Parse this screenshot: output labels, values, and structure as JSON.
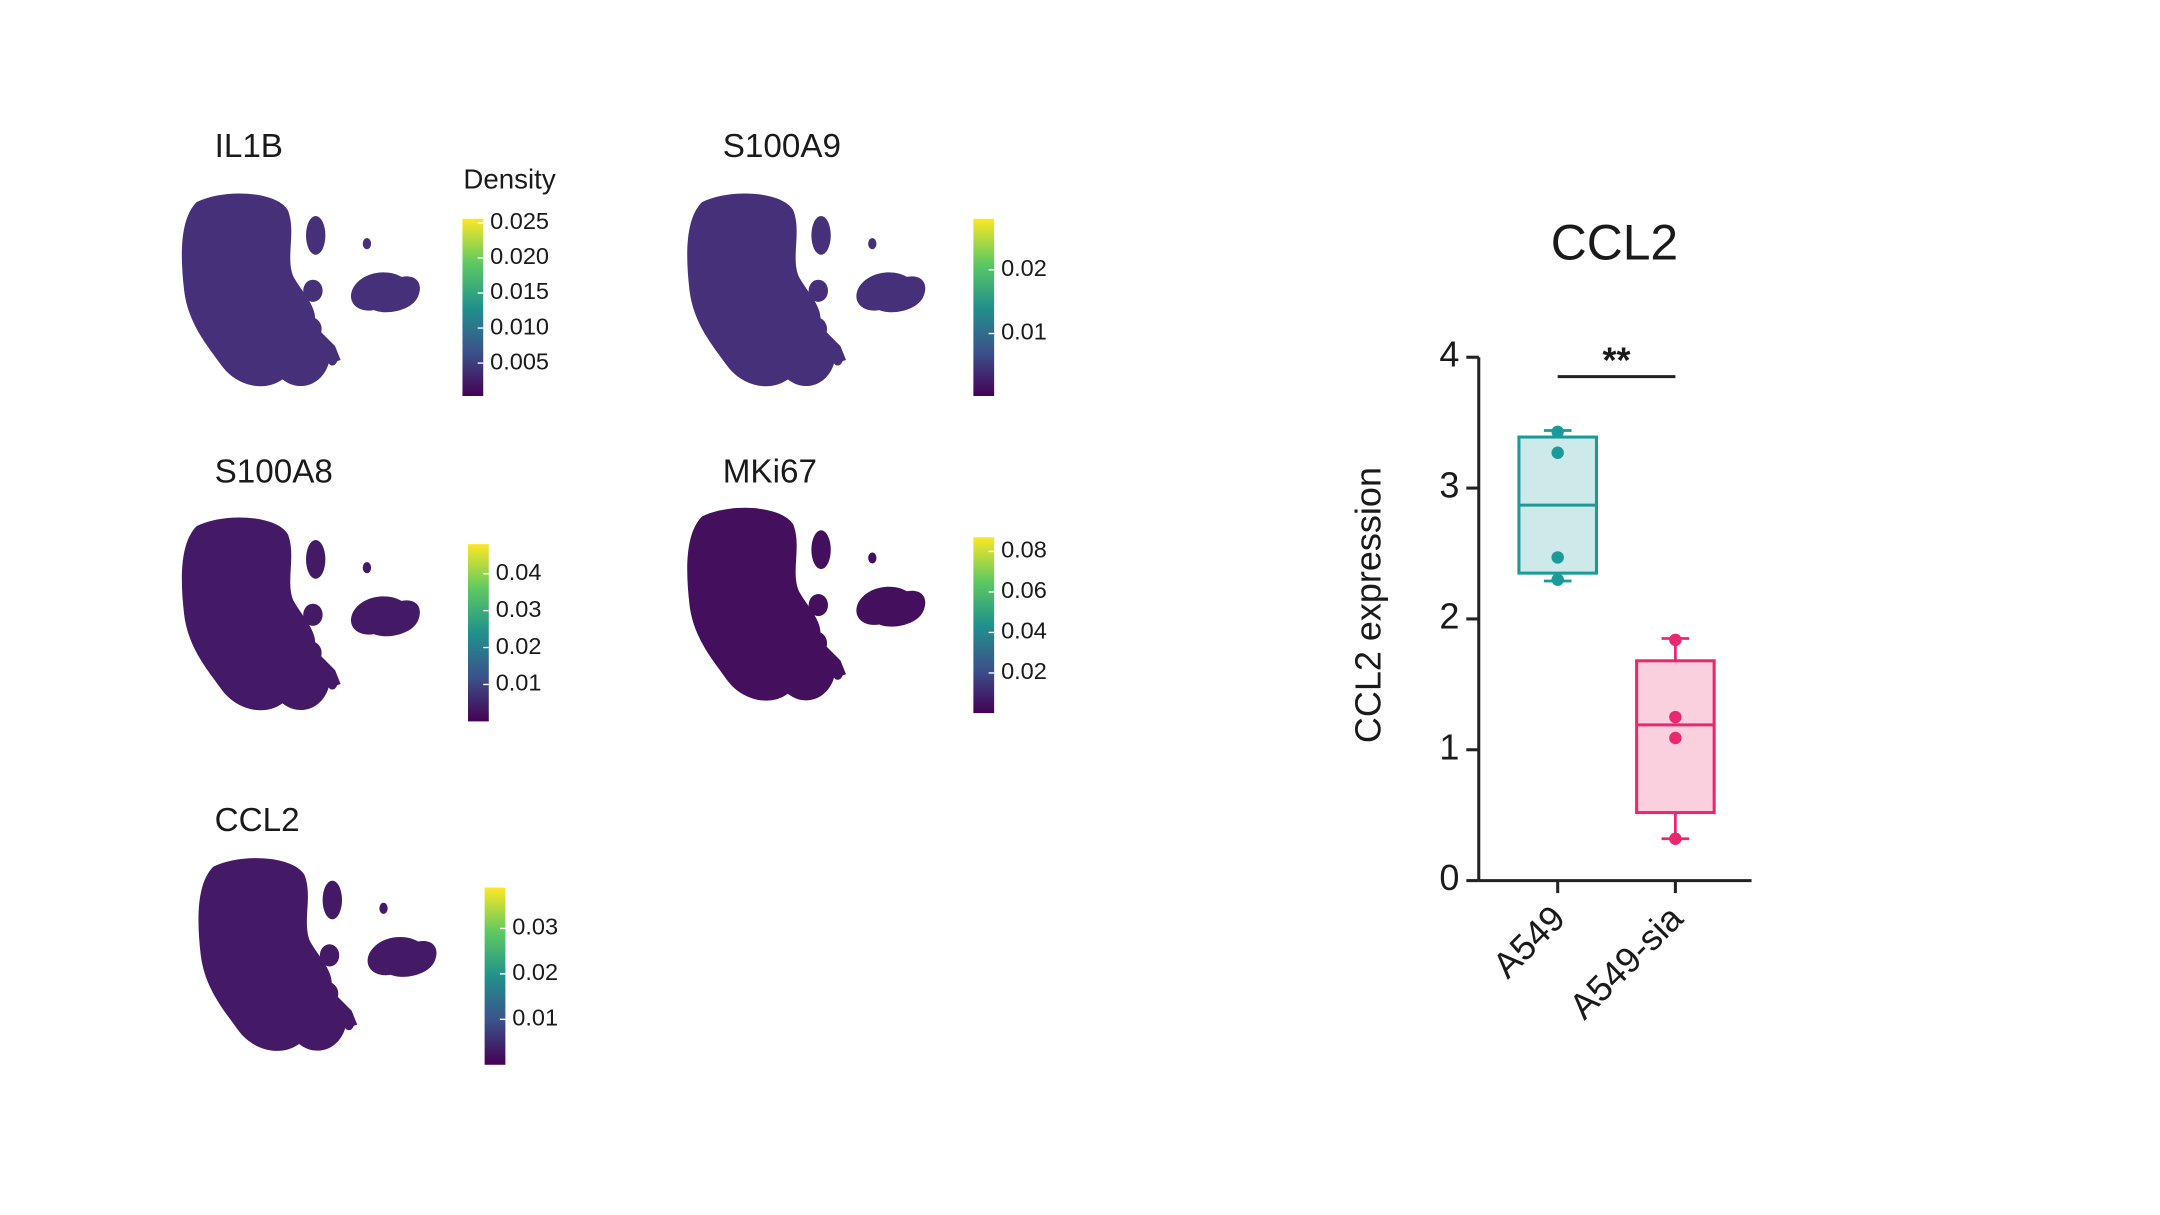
{
  "chart_data": [
    {
      "type": "density",
      "title": "IL1B",
      "colorbar_label": "Density",
      "clim": [
        0.0003,
        0.0256
      ],
      "cticks": [
        {
          "value": 0.025,
          "label": "0.025"
        },
        {
          "value": 0.02,
          "label": "0.020"
        },
        {
          "value": 0.015,
          "label": "0.015"
        },
        {
          "value": 0.01,
          "label": "0.010"
        },
        {
          "value": 0.005,
          "label": "0.005"
        }
      ]
    },
    {
      "type": "density",
      "title": "S100A9",
      "clim": [
        0.0002,
        0.028
      ],
      "cticks": [
        0.02,
        0.01
      ]
    },
    {
      "type": "density",
      "title": "S100A8",
      "clim": [
        0,
        0.048
      ],
      "cticks": [
        0.04,
        0.03,
        0.02,
        0.01
      ]
    },
    {
      "type": "density",
      "title": "MKi67",
      "clim": [
        0.0002,
        0.087
      ],
      "cticks": [
        0.08,
        0.06,
        0.04,
        0.02
      ]
    },
    {
      "type": "density",
      "title": "CCL2",
      "clim": [
        0,
        0.039
      ],
      "cticks": [
        0.03,
        0.02,
        0.01
      ]
    },
    {
      "type": "box",
      "title": "CCL2",
      "y_label": "CCL2 expression",
      "categories": [
        "A549",
        "A549-sia"
      ],
      "colors": [
        "#1b9a9a",
        "#e8296f"
      ],
      "ylim": [
        0,
        4
      ],
      "yticks": [
        0,
        1,
        2,
        3,
        4
      ],
      "annotation": "**",
      "boxes": [
        {
          "min": 2.29,
          "q1": 2.35,
          "median": 2.87,
          "q3": 3.39,
          "max": 3.44,
          "points": [
            3.43,
            3.27,
            2.47,
            2.3
          ]
        },
        {
          "min": 0.32,
          "q1": 0.52,
          "median": 1.19,
          "q3": 1.68,
          "max": 1.85,
          "points": [
            1.84,
            1.25,
            1.09,
            0.32
          ]
        }
      ]
    }
  ]
}
